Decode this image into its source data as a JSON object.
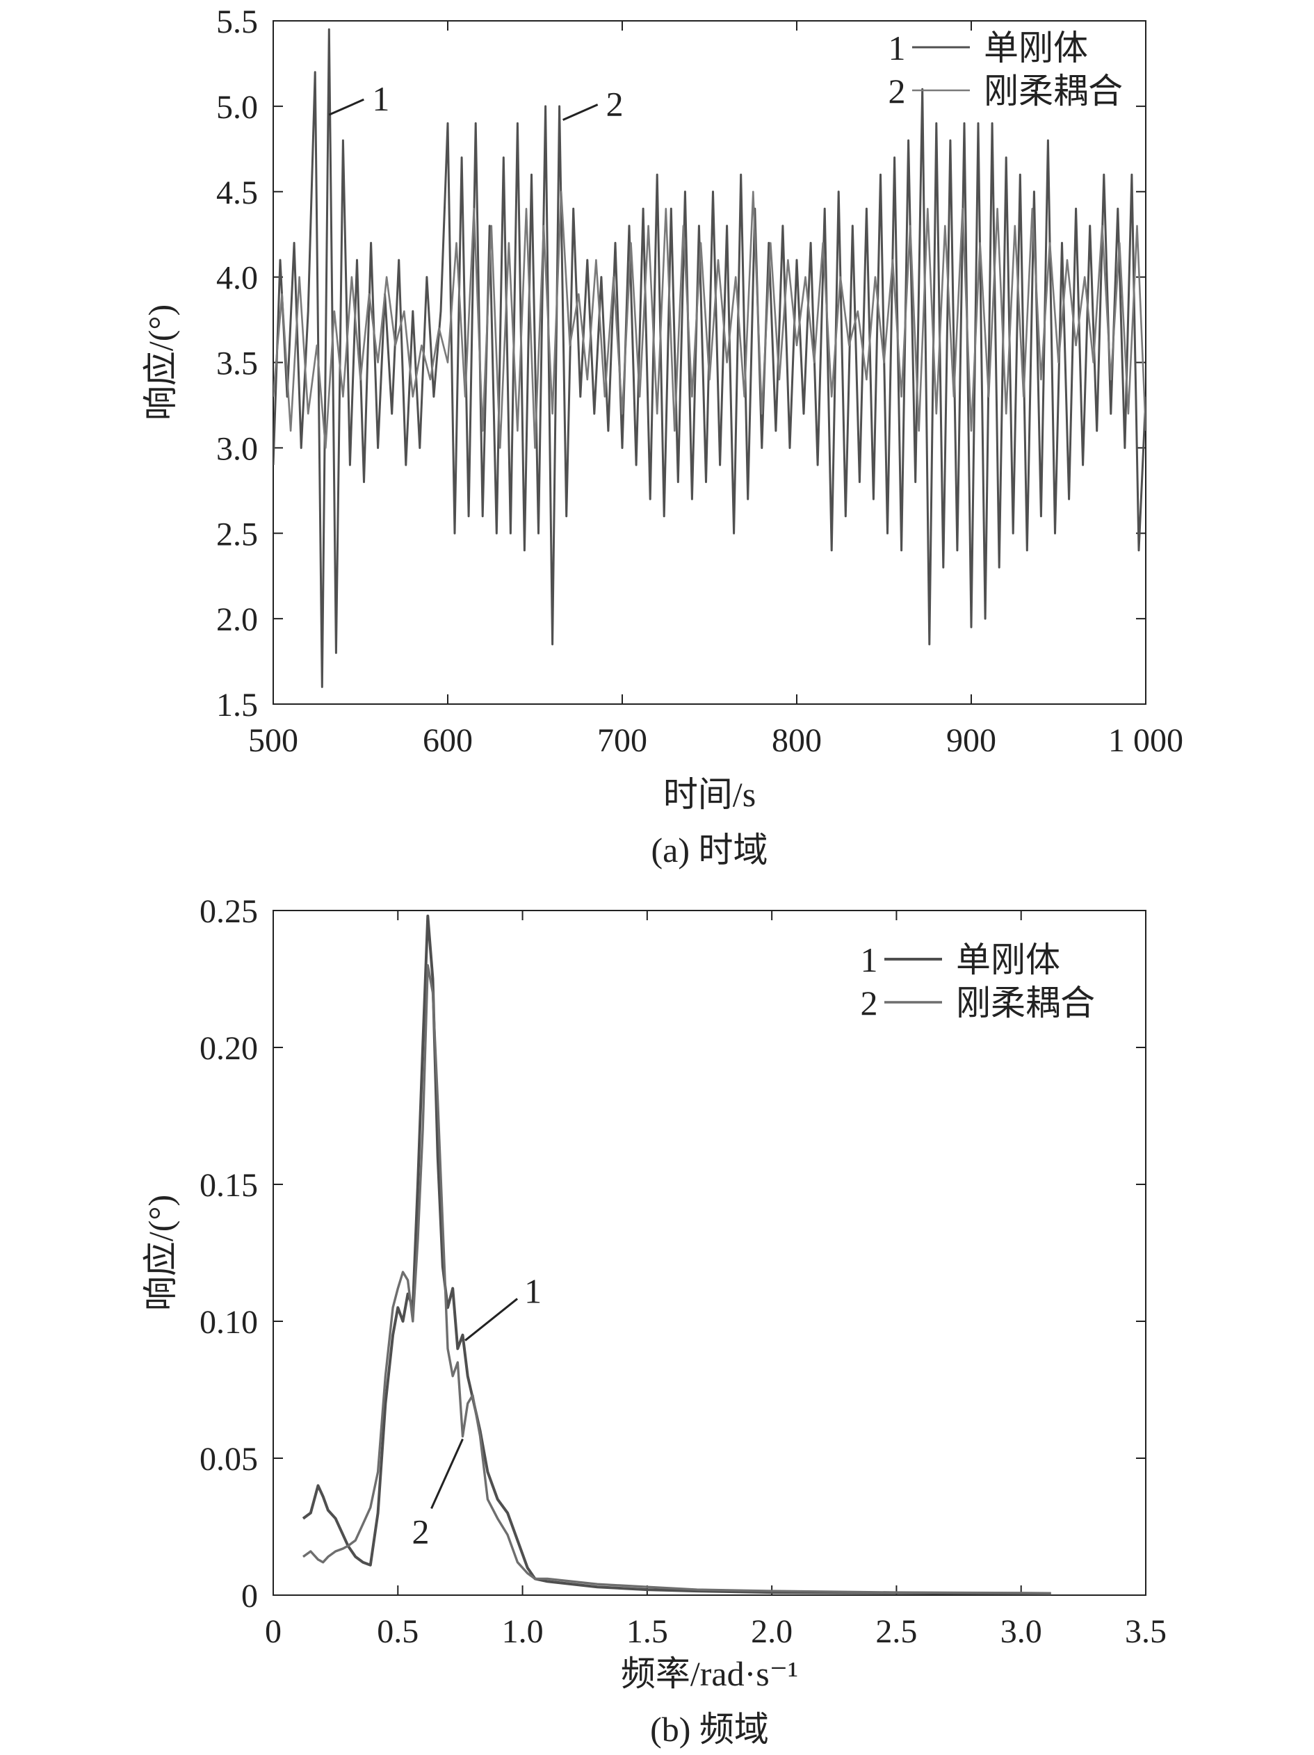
{
  "chart_data": [
    {
      "type": "line",
      "caption": "(a) 时域",
      "xlabel": "时间/s",
      "ylabel": "响应/(°)",
      "xlim": [
        500,
        1000
      ],
      "ylim": [
        1.5,
        5.5
      ],
      "xticks": [
        500,
        600,
        700,
        800,
        900,
        1000
      ],
      "xtick_labels": [
        "500",
        "600",
        "700",
        "800",
        "900",
        "1 000"
      ],
      "yticks": [
        1.5,
        2.0,
        2.5,
        3.0,
        3.5,
        4.0,
        4.5,
        5.0,
        5.5
      ],
      "ytick_labels": [
        "1.5",
        "2.0",
        "2.5",
        "3.0",
        "3.5",
        "4.0",
        "4.5",
        "5.0",
        "5.5"
      ],
      "grid": false,
      "legend": "top-right",
      "legend_entries": [
        {
          "num": "1",
          "name": "单刚体"
        },
        {
          "num": "2",
          "name": "刚柔耦合"
        }
      ],
      "annotations": [
        {
          "text": "1",
          "x": 532,
          "y": 4.95
        },
        {
          "text": "2",
          "x": 666,
          "y": 4.92
        }
      ],
      "series": [
        {
          "name": "单刚体",
          "x": [
            500,
            504,
            508,
            512,
            516,
            520,
            524,
            528,
            532,
            536,
            540,
            544,
            548,
            552,
            556,
            560,
            564,
            568,
            572,
            576,
            580,
            584,
            588,
            592,
            596,
            600,
            604,
            608,
            612,
            616,
            620,
            624,
            628,
            632,
            636,
            640,
            644,
            648,
            652,
            656,
            660,
            664,
            668,
            672,
            676,
            680,
            684,
            688,
            692,
            696,
            700,
            704,
            708,
            712,
            716,
            720,
            724,
            728,
            732,
            736,
            740,
            744,
            748,
            752,
            756,
            760,
            764,
            768,
            772,
            776,
            780,
            784,
            788,
            792,
            796,
            800,
            804,
            808,
            812,
            816,
            820,
            824,
            828,
            832,
            836,
            840,
            844,
            848,
            852,
            856,
            860,
            864,
            868,
            872,
            876,
            880,
            884,
            888,
            892,
            896,
            900,
            904,
            908,
            912,
            916,
            920,
            924,
            928,
            932,
            936,
            940,
            944,
            948,
            952,
            956,
            960,
            964,
            968,
            972,
            976,
            980,
            984,
            988,
            992,
            996,
            1000
          ],
          "y": [
            2.9,
            4.1,
            3.3,
            4.2,
            3.0,
            3.8,
            5.2,
            1.6,
            5.45,
            1.8,
            4.8,
            2.9,
            4.1,
            2.8,
            4.2,
            3.0,
            3.9,
            3.2,
            4.1,
            2.9,
            3.8,
            3.0,
            4.0,
            3.3,
            3.8,
            4.9,
            2.5,
            4.7,
            2.6,
            4.9,
            2.6,
            4.3,
            2.5,
            4.7,
            2.5,
            4.9,
            2.4,
            4.6,
            2.5,
            5.0,
            1.85,
            5.0,
            2.6,
            4.4,
            3.3,
            4.1,
            3.2,
            4.0,
            3.1,
            4.2,
            3.0,
            4.3,
            2.9,
            4.4,
            2.7,
            4.6,
            2.6,
            4.4,
            2.8,
            4.5,
            2.7,
            4.3,
            2.8,
            4.5,
            2.9,
            4.3,
            2.5,
            4.6,
            2.7,
            4.4,
            3.0,
            4.2,
            3.1,
            4.3,
            3.0,
            4.1,
            3.2,
            4.2,
            2.9,
            4.4,
            2.4,
            4.5,
            2.6,
            4.3,
            2.8,
            4.4,
            2.7,
            4.6,
            2.5,
            4.7,
            2.4,
            4.8,
            2.8,
            5.1,
            1.85,
            4.9,
            2.3,
            4.8,
            2.4,
            4.9,
            1.95,
            4.9,
            2.0,
            4.9,
            2.3,
            4.7,
            2.5,
            4.6,
            2.4,
            4.5,
            2.6,
            4.8,
            2.5,
            4.2,
            2.7,
            4.4,
            2.9,
            4.3,
            3.1,
            4.6,
            3.2,
            4.4,
            3.0,
            4.6,
            2.4,
            3.3
          ]
        },
        {
          "name": "刚柔耦合",
          "x": [
            500,
            505,
            510,
            515,
            520,
            525,
            530,
            535,
            540,
            545,
            550,
            555,
            560,
            565,
            570,
            575,
            580,
            585,
            590,
            595,
            600,
            605,
            610,
            615,
            620,
            625,
            630,
            635,
            640,
            645,
            650,
            655,
            660,
            665,
            670,
            675,
            680,
            685,
            690,
            695,
            700,
            705,
            710,
            715,
            720,
            725,
            730,
            735,
            740,
            745,
            750,
            755,
            760,
            765,
            770,
            775,
            780,
            785,
            790,
            795,
            800,
            805,
            810,
            815,
            820,
            825,
            830,
            835,
            840,
            845,
            850,
            855,
            860,
            865,
            870,
            875,
            880,
            885,
            890,
            895,
            900,
            905,
            910,
            915,
            920,
            925,
            930,
            935,
            940,
            945,
            950,
            955,
            960,
            965,
            970,
            975,
            980,
            985,
            990,
            995,
            1000
          ],
          "y": [
            3.3,
            3.9,
            3.1,
            4.0,
            3.2,
            3.6,
            3.0,
            3.8,
            3.3,
            4.0,
            3.4,
            3.9,
            3.5,
            4.0,
            3.6,
            3.8,
            3.3,
            3.6,
            3.4,
            3.7,
            3.5,
            4.2,
            3.3,
            4.4,
            3.1,
            4.3,
            3.0,
            4.2,
            3.1,
            4.4,
            3.0,
            4.3,
            3.2,
            4.5,
            3.6,
            3.9,
            3.4,
            4.1,
            3.3,
            4.0,
            3.2,
            4.2,
            3.3,
            4.3,
            3.2,
            4.4,
            3.1,
            4.3,
            3.3,
            4.2,
            3.4,
            4.1,
            3.5,
            4.0,
            3.3,
            4.5,
            3.2,
            4.2,
            3.4,
            4.1,
            3.6,
            4.0,
            3.5,
            4.2,
            3.3,
            4.0,
            3.6,
            3.8,
            3.4,
            4.0,
            3.5,
            4.1,
            3.3,
            4.3,
            3.1,
            4.4,
            3.2,
            4.3,
            3.3,
            4.4,
            3.1,
            4.2,
            3.3,
            4.4,
            3.2,
            4.3,
            3.3,
            4.4,
            3.4,
            4.2,
            3.5,
            4.1,
            3.6,
            4.0,
            3.5,
            4.3,
            3.4,
            4.2,
            3.2,
            4.3,
            3.1
          ]
        }
      ]
    },
    {
      "type": "line",
      "caption": "(b) 频域",
      "xlabel": "频率/rad·s⁻¹",
      "ylabel": "响应/(°)",
      "xlim": [
        0,
        3.5
      ],
      "ylim": [
        0,
        0.25
      ],
      "xticks": [
        0,
        0.5,
        1.0,
        1.5,
        2.0,
        2.5,
        3.0,
        3.5
      ],
      "xtick_labels": [
        "0",
        "0.5",
        "1.0",
        "1.5",
        "2.0",
        "2.5",
        "3.0",
        "3.5"
      ],
      "yticks": [
        0,
        0.05,
        0.1,
        0.15,
        0.2,
        0.25
      ],
      "ytick_labels": [
        "0",
        "0.05",
        "0.10",
        "0.15",
        "0.20",
        "0.25"
      ],
      "grid": false,
      "legend": "top-right",
      "legend_entries": [
        {
          "num": "1",
          "name": "单刚体"
        },
        {
          "num": "2",
          "name": "刚柔耦合"
        }
      ],
      "annotations": [
        {
          "text": "1",
          "x": 0.77,
          "y": 0.093
        },
        {
          "text": "2",
          "x": 0.76,
          "y": 0.057
        }
      ],
      "series": [
        {
          "name": "单刚体",
          "x": [
            0.12,
            0.15,
            0.18,
            0.2,
            0.22,
            0.25,
            0.28,
            0.3,
            0.33,
            0.36,
            0.39,
            0.42,
            0.45,
            0.48,
            0.5,
            0.52,
            0.54,
            0.56,
            0.58,
            0.6,
            0.62,
            0.64,
            0.66,
            0.68,
            0.7,
            0.72,
            0.74,
            0.76,
            0.78,
            0.8,
            0.83,
            0.86,
            0.9,
            0.94,
            0.98,
            1.02,
            1.05,
            1.1,
            1.2,
            1.3,
            1.5,
            1.7,
            2.0,
            2.5,
            3.0,
            3.12
          ],
          "y": [
            0.028,
            0.03,
            0.04,
            0.036,
            0.031,
            0.028,
            0.022,
            0.018,
            0.014,
            0.012,
            0.011,
            0.03,
            0.07,
            0.095,
            0.105,
            0.1,
            0.11,
            0.105,
            0.15,
            0.2,
            0.248,
            0.225,
            0.16,
            0.12,
            0.105,
            0.112,
            0.09,
            0.095,
            0.08,
            0.072,
            0.06,
            0.045,
            0.035,
            0.03,
            0.02,
            0.01,
            0.006,
            0.005,
            0.004,
            0.003,
            0.002,
            0.0015,
            0.001,
            0.0008,
            0.0006,
            0.0005
          ]
        },
        {
          "name": "刚柔耦合",
          "x": [
            0.12,
            0.15,
            0.18,
            0.2,
            0.22,
            0.25,
            0.28,
            0.3,
            0.33,
            0.36,
            0.39,
            0.42,
            0.45,
            0.48,
            0.5,
            0.52,
            0.54,
            0.56,
            0.58,
            0.6,
            0.62,
            0.64,
            0.66,
            0.68,
            0.7,
            0.72,
            0.74,
            0.76,
            0.78,
            0.8,
            0.83,
            0.86,
            0.9,
            0.94,
            0.98,
            1.02,
            1.05,
            1.1,
            1.2,
            1.3,
            1.5,
            1.7,
            2.0,
            2.5,
            3.0,
            3.12
          ],
          "y": [
            0.014,
            0.016,
            0.013,
            0.012,
            0.014,
            0.016,
            0.017,
            0.018,
            0.02,
            0.026,
            0.032,
            0.045,
            0.08,
            0.105,
            0.112,
            0.118,
            0.115,
            0.1,
            0.13,
            0.17,
            0.23,
            0.22,
            0.18,
            0.135,
            0.09,
            0.08,
            0.085,
            0.058,
            0.07,
            0.073,
            0.058,
            0.035,
            0.028,
            0.022,
            0.012,
            0.008,
            0.006,
            0.006,
            0.005,
            0.004,
            0.003,
            0.002,
            0.0015,
            0.001,
            0.0008,
            0.0007
          ]
        }
      ]
    }
  ]
}
